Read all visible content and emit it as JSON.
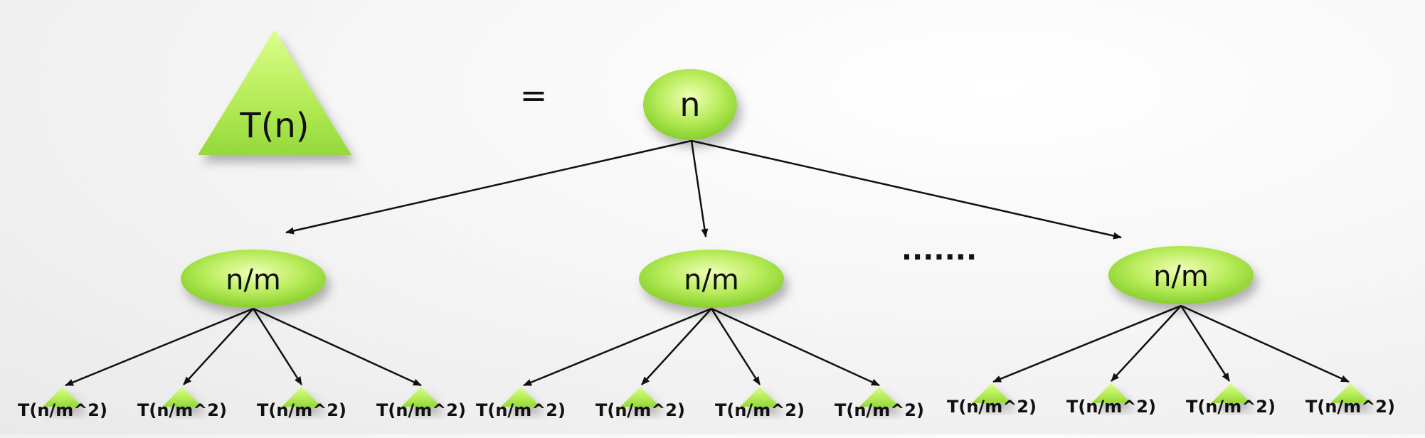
{
  "lhs_triangle_label": "T(n)",
  "equals_sign": "=",
  "root_label": "n",
  "ellipsis": ".......",
  "children": [
    {
      "label": "n/m",
      "leaves": [
        "T(n/m^2)",
        "T(n/m^2)",
        "T(n/m^2)",
        "T(n/m^2)"
      ]
    },
    {
      "label": "n/m",
      "leaves": [
        "T(n/m^2)",
        "T(n/m^2)",
        "T(n/m^2)",
        "T(n/m^2)"
      ]
    },
    {
      "label": "n/m",
      "leaves": [
        "T(n/m^2)",
        "T(n/m^2)",
        "T(n/m^2)",
        "T(n/m^2)"
      ]
    }
  ],
  "colors": {
    "node_fill_light": "#e6ff9a",
    "node_fill_dark": "#8fd631",
    "arrow": "#111111",
    "text": "#111111"
  }
}
